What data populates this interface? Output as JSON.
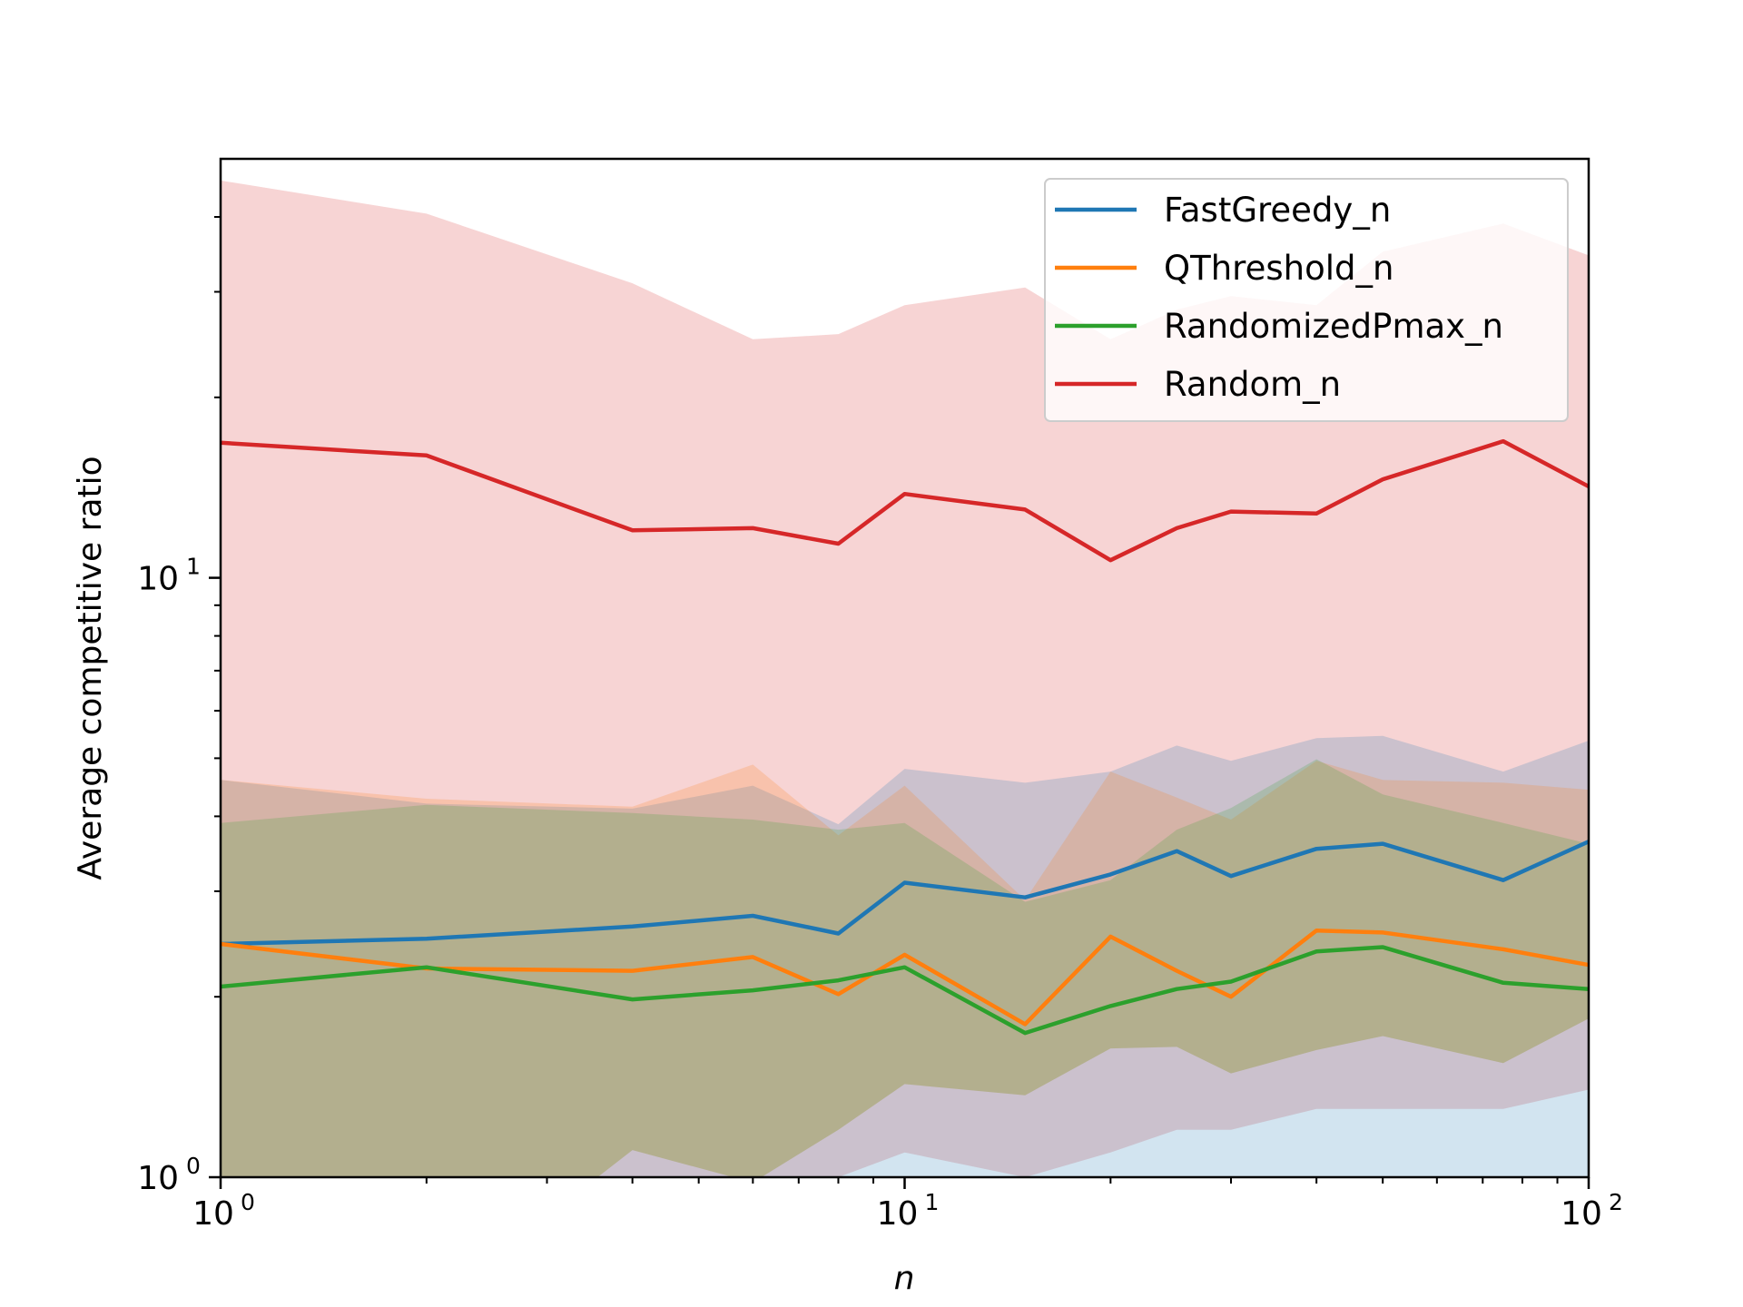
{
  "chart_data": {
    "type": "line",
    "xlabel": "n",
    "ylabel": "Average competitive ratio",
    "xscale": "log",
    "yscale": "log",
    "xlim": [
      1,
      100
    ],
    "ylim": [
      1,
      50
    ],
    "x_ticks": [
      {
        "value": 1,
        "base": "10",
        "exp": "0"
      },
      {
        "value": 10,
        "base": "10",
        "exp": "1"
      },
      {
        "value": 100,
        "base": "10",
        "exp": "2"
      }
    ],
    "y_ticks": [
      {
        "value": 1,
        "base": "10",
        "exp": "0"
      },
      {
        "value": 10,
        "base": "10",
        "exp": "1"
      }
    ],
    "grid": false,
    "legend_position": "top-right",
    "x": [
      1,
      2,
      4,
      6,
      8,
      10,
      15,
      20,
      25,
      30,
      40,
      50,
      75,
      100
    ],
    "series": [
      {
        "name": "FastGreedy_n",
        "color": "#1f77b4",
        "values": [
          2.45,
          2.5,
          2.62,
          2.73,
          2.55,
          3.1,
          2.93,
          3.2,
          3.5,
          3.18,
          3.53,
          3.6,
          3.13,
          3.63
        ],
        "band_low": [
          0.6,
          0.6,
          0.7,
          0.8,
          0.8,
          0.85,
          0.75,
          0.8,
          0.9,
          0.85,
          0.95,
          1.0,
          0.9,
          1.0
        ],
        "band_high": [
          4.6,
          4.2,
          4.12,
          4.5,
          3.88,
          4.8,
          4.55,
          4.75,
          5.25,
          4.95,
          5.4,
          5.45,
          4.75,
          5.35
        ]
      },
      {
        "name": "QThreshold_n",
        "color": "#ff7f0e",
        "values": [
          2.45,
          2.23,
          2.21,
          2.33,
          2.02,
          2.35,
          1.8,
          2.52,
          2.21,
          2.0,
          2.58,
          2.56,
          2.4,
          2.26
        ],
        "band_low": [
          0.5,
          0.6,
          1.11,
          0.98,
          1.2,
          1.43,
          1.37,
          1.64,
          1.65,
          1.49,
          1.63,
          1.72,
          1.55,
          1.84
        ],
        "band_high": [
          4.6,
          4.28,
          4.15,
          4.88,
          3.72,
          4.5,
          2.9,
          4.75,
          4.3,
          3.95,
          4.95,
          4.6,
          4.55,
          4.43
        ]
      },
      {
        "name": "RandomizedPmax_n",
        "color": "#2ca02c",
        "values": [
          2.08,
          2.24,
          1.98,
          2.05,
          2.13,
          2.24,
          1.74,
          1.93,
          2.06,
          2.12,
          2.38,
          2.42,
          2.11,
          2.06
        ],
        "band_low": [
          0.5,
          0.6,
          1.11,
          0.98,
          1.2,
          1.43,
          1.37,
          1.64,
          1.65,
          1.49,
          1.63,
          1.72,
          1.55,
          1.84
        ],
        "band_high": [
          3.9,
          4.18,
          4.05,
          3.95,
          3.8,
          3.9,
          2.88,
          3.13,
          3.8,
          4.13,
          4.98,
          4.35,
          3.9,
          3.6
        ]
      },
      {
        "name": "Random_n",
        "color": "#d62728",
        "values": [
          16.8,
          16.0,
          12.0,
          12.1,
          11.4,
          13.8,
          13.0,
          10.7,
          12.1,
          12.9,
          12.8,
          14.6,
          16.9,
          14.2
        ],
        "band_low": [
          0.5,
          0.6,
          0.8,
          0.9,
          1.0,
          1.1,
          1.0,
          1.1,
          1.2,
          1.2,
          1.3,
          1.3,
          1.3,
          1.4
        ],
        "band_high": [
          46.0,
          40.5,
          31.0,
          25.0,
          25.5,
          28.5,
          30.5,
          25.0,
          28.0,
          29.5,
          28.5,
          35.0,
          39.0,
          34.5
        ]
      }
    ]
  }
}
